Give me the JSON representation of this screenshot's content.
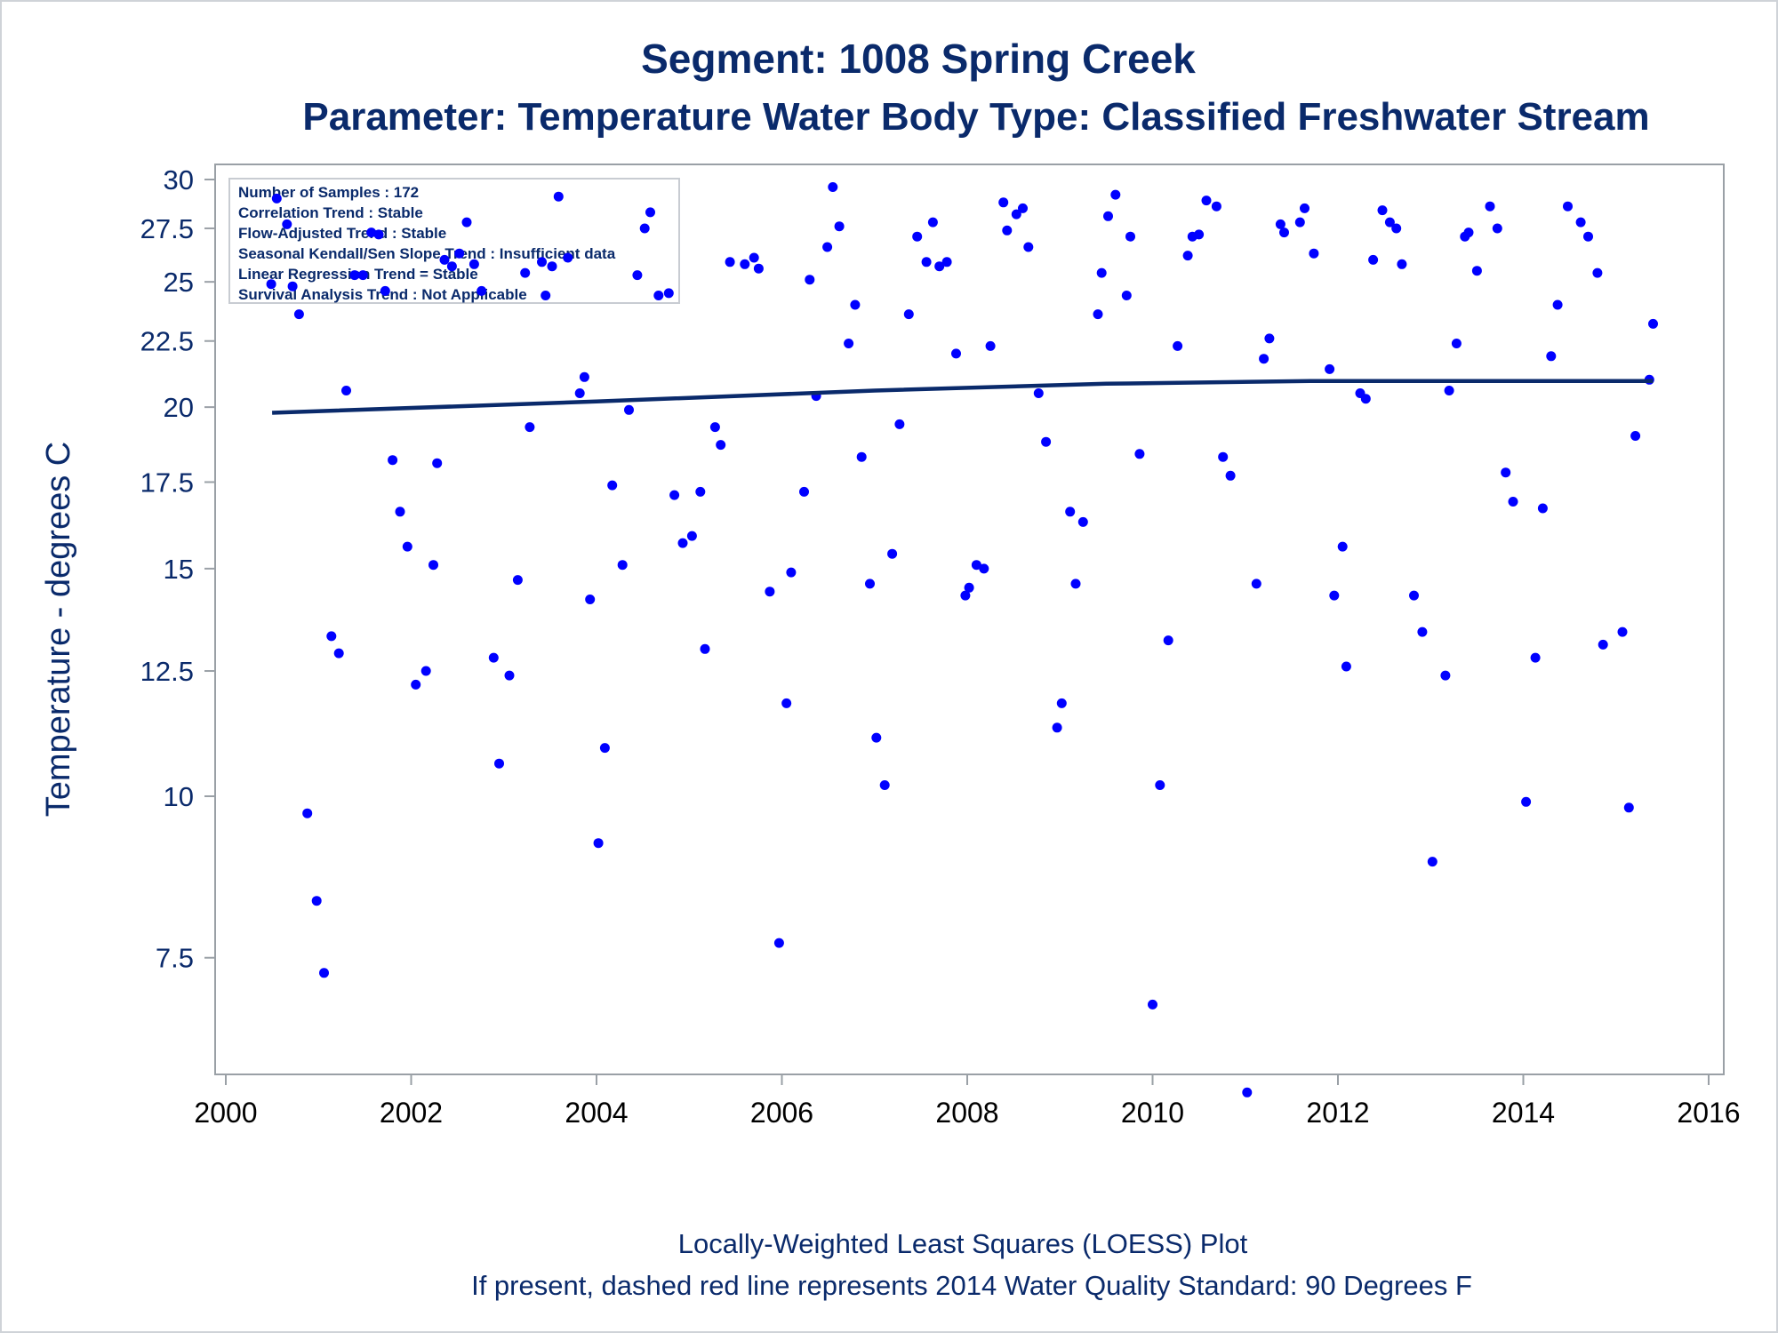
{
  "chart_data": {
    "type": "scatter",
    "title": "Segment: 1008  Spring Creek",
    "subtitle": "Parameter: Temperature   Water Body Type: Classified Freshwater Stream",
    "xlabel": "",
    "ylabel": "Temperature - degrees C",
    "x_ticks": [
      "2000",
      "2002",
      "2004",
      "2006",
      "2008",
      "2010",
      "2012",
      "2014",
      "2016"
    ],
    "y_ticks": [
      "7.5",
      "10",
      "12.5",
      "15",
      "17.5",
      "20",
      "22.5",
      "25",
      "27.5",
      "30"
    ],
    "xlim": [
      2000,
      2016
    ],
    "ylim": [
      5.9,
      30
    ],
    "y_scale": "log",
    "grid": false,
    "colors": {
      "points": "#0000ff",
      "trend_line": "#0a2a6b",
      "text": "#0a2a6b",
      "frame": "#9aa0a6"
    },
    "info_box": [
      "Number of Samples : 172",
      "Correlation Trend : Stable",
      "Flow-Adjusted Trend : Stable",
      "Seasonal Kendall/Sen Slope Trend : Insufficient data",
      "Linear Regression Trend = Stable",
      "Survival Analysis Trend : Not Applicable"
    ],
    "footer": [
      "Locally-Weighted Least Squares (LOESS) Plot",
      "If present, dashed red line represents 2014 Water Quality Standard: 90   Degrees F"
    ],
    "trend_line": {
      "name": "LOESS",
      "points": [
        [
          2000.5,
          19.8
        ],
        [
          2004,
          20.2
        ],
        [
          2007,
          20.6
        ],
        [
          2009.5,
          20.85
        ],
        [
          2011.7,
          20.95
        ],
        [
          2015.4,
          20.95
        ]
      ]
    },
    "series": [
      {
        "name": "Temperature samples",
        "points": [
          [
            2000.49,
            24.9
          ],
          [
            2000.55,
            29.0
          ],
          [
            2000.66,
            27.7
          ],
          [
            2000.72,
            24.8
          ],
          [
            2000.79,
            23.6
          ],
          [
            2000.88,
            9.7
          ],
          [
            2000.98,
            8.3
          ],
          [
            2001.06,
            7.3
          ],
          [
            2001.14,
            13.3
          ],
          [
            2001.22,
            12.9
          ],
          [
            2001.3,
            20.6
          ],
          [
            2001.39,
            25.3
          ],
          [
            2001.48,
            25.3
          ],
          [
            2001.57,
            27.3
          ],
          [
            2001.65,
            27.2
          ],
          [
            2001.72,
            24.6
          ],
          [
            2001.8,
            18.2
          ],
          [
            2001.88,
            16.6
          ],
          [
            2001.96,
            15.6
          ],
          [
            2002.05,
            12.2
          ],
          [
            2002.16,
            12.5
          ],
          [
            2002.24,
            15.1
          ],
          [
            2002.28,
            18.1
          ],
          [
            2002.36,
            26.0
          ],
          [
            2002.44,
            25.7
          ],
          [
            2002.52,
            26.3
          ],
          [
            2002.6,
            27.8
          ],
          [
            2002.68,
            25.8
          ],
          [
            2002.76,
            24.6
          ],
          [
            2002.89,
            12.8
          ],
          [
            2002.95,
            10.6
          ],
          [
            2003.06,
            12.4
          ],
          [
            2003.15,
            14.7
          ],
          [
            2003.23,
            25.4
          ],
          [
            2003.28,
            19.3
          ],
          [
            2003.41,
            25.9
          ],
          [
            2003.45,
            24.4
          ],
          [
            2003.52,
            25.7
          ],
          [
            2003.59,
            29.1
          ],
          [
            2003.69,
            26.1
          ],
          [
            2003.82,
            20.5
          ],
          [
            2003.87,
            21.1
          ],
          [
            2003.93,
            14.2
          ],
          [
            2004.02,
            9.2
          ],
          [
            2004.09,
            10.9
          ],
          [
            2004.17,
            17.4
          ],
          [
            2004.28,
            15.1
          ],
          [
            2004.35,
            19.9
          ],
          [
            2004.44,
            25.3
          ],
          [
            2004.52,
            27.5
          ],
          [
            2004.58,
            28.3
          ],
          [
            2004.67,
            24.4
          ],
          [
            2004.78,
            24.5
          ],
          [
            2004.84,
            17.1
          ],
          [
            2004.93,
            15.7
          ],
          [
            2005.03,
            15.9
          ],
          [
            2005.12,
            17.2
          ],
          [
            2005.17,
            13.0
          ],
          [
            2005.28,
            19.3
          ],
          [
            2005.34,
            18.7
          ],
          [
            2005.44,
            25.9
          ],
          [
            2005.6,
            25.8
          ],
          [
            2005.7,
            26.1
          ],
          [
            2005.75,
            25.6
          ],
          [
            2005.87,
            14.4
          ],
          [
            2005.97,
            7.7
          ],
          [
            2006.05,
            11.8
          ],
          [
            2006.1,
            14.9
          ],
          [
            2006.24,
            17.2
          ],
          [
            2006.3,
            25.1
          ],
          [
            2006.37,
            20.4
          ],
          [
            2006.49,
            26.6
          ],
          [
            2006.55,
            29.6
          ],
          [
            2006.62,
            27.6
          ],
          [
            2006.72,
            22.4
          ],
          [
            2006.79,
            24.0
          ],
          [
            2006.86,
            18.3
          ],
          [
            2006.95,
            14.6
          ],
          [
            2007.02,
            11.1
          ],
          [
            2007.11,
            10.2
          ],
          [
            2007.19,
            15.4
          ],
          [
            2007.27,
            19.4
          ],
          [
            2007.37,
            23.6
          ],
          [
            2007.46,
            27.1
          ],
          [
            2007.56,
            25.9
          ],
          [
            2007.63,
            27.8
          ],
          [
            2007.7,
            25.7
          ],
          [
            2007.78,
            25.9
          ],
          [
            2007.88,
            22.0
          ],
          [
            2007.98,
            14.3
          ],
          [
            2008.02,
            14.5
          ],
          [
            2008.1,
            15.1
          ],
          [
            2008.18,
            15.0
          ],
          [
            2008.25,
            22.3
          ],
          [
            2008.39,
            28.8
          ],
          [
            2008.43,
            27.4
          ],
          [
            2008.53,
            28.2
          ],
          [
            2008.6,
            28.5
          ],
          [
            2008.66,
            26.6
          ],
          [
            2008.77,
            20.5
          ],
          [
            2008.85,
            18.8
          ],
          [
            2008.97,
            11.3
          ],
          [
            2009.02,
            11.8
          ],
          [
            2009.11,
            16.6
          ],
          [
            2009.17,
            14.6
          ],
          [
            2009.25,
            16.3
          ],
          [
            2009.41,
            23.6
          ],
          [
            2009.45,
            25.4
          ],
          [
            2009.52,
            28.1
          ],
          [
            2009.6,
            29.2
          ],
          [
            2009.72,
            24.4
          ],
          [
            2009.76,
            27.1
          ],
          [
            2009.86,
            18.4
          ],
          [
            2010.0,
            6.9
          ],
          [
            2010.08,
            10.2
          ],
          [
            2010.17,
            13.2
          ],
          [
            2010.27,
            22.3
          ],
          [
            2010.38,
            26.2
          ],
          [
            2010.43,
            27.1
          ],
          [
            2010.5,
            27.2
          ],
          [
            2010.58,
            28.9
          ],
          [
            2010.69,
            28.6
          ],
          [
            2010.76,
            18.3
          ],
          [
            2010.84,
            17.7
          ],
          [
            2011.02,
            5.9
          ],
          [
            2011.12,
            14.6
          ],
          [
            2011.2,
            21.8
          ],
          [
            2011.26,
            22.6
          ],
          [
            2011.38,
            27.7
          ],
          [
            2011.42,
            27.3
          ],
          [
            2011.59,
            27.8
          ],
          [
            2011.64,
            28.5
          ],
          [
            2011.74,
            26.3
          ],
          [
            2011.91,
            21.4
          ],
          [
            2011.96,
            14.3
          ],
          [
            2012.05,
            15.6
          ],
          [
            2012.09,
            12.6
          ],
          [
            2012.24,
            20.5
          ],
          [
            2012.3,
            20.3
          ],
          [
            2012.38,
            26.0
          ],
          [
            2012.48,
            28.4
          ],
          [
            2012.56,
            27.8
          ],
          [
            2012.63,
            27.5
          ],
          [
            2012.69,
            25.8
          ],
          [
            2012.82,
            14.3
          ],
          [
            2012.91,
            13.4
          ],
          [
            2013.02,
            8.9
          ],
          [
            2013.16,
            12.4
          ],
          [
            2013.2,
            20.6
          ],
          [
            2013.28,
            22.4
          ],
          [
            2013.37,
            27.1
          ],
          [
            2013.41,
            27.3
          ],
          [
            2013.5,
            25.5
          ],
          [
            2013.64,
            28.6
          ],
          [
            2013.72,
            27.5
          ],
          [
            2013.81,
            17.8
          ],
          [
            2013.89,
            16.9
          ],
          [
            2014.03,
            9.9
          ],
          [
            2014.13,
            12.8
          ],
          [
            2014.21,
            16.7
          ],
          [
            2014.3,
            21.9
          ],
          [
            2014.37,
            24.0
          ],
          [
            2014.48,
            28.6
          ],
          [
            2014.62,
            27.8
          ],
          [
            2014.7,
            27.1
          ],
          [
            2014.8,
            25.4
          ],
          [
            2014.86,
            13.1
          ],
          [
            2015.07,
            13.4
          ],
          [
            2015.14,
            9.8
          ],
          [
            2015.21,
            19.0
          ],
          [
            2015.36,
            21.0
          ],
          [
            2015.4,
            23.2
          ]
        ]
      }
    ]
  }
}
